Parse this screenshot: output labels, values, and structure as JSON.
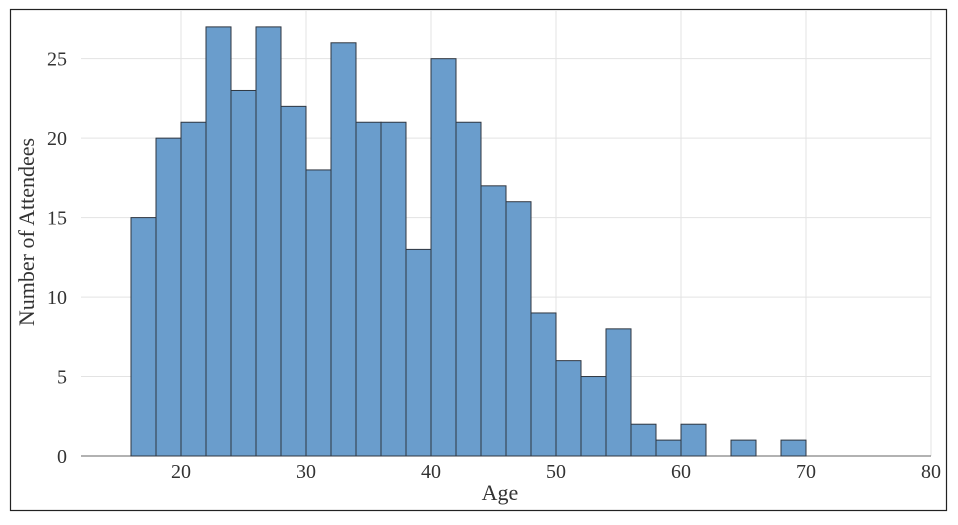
{
  "chart_data": {
    "type": "bar",
    "subtype": "histogram",
    "xlabel": "Age",
    "ylabel": "Number of Attendees",
    "xlim": [
      12,
      80
    ],
    "ylim": [
      0,
      28
    ],
    "xticks": [
      20,
      30,
      40,
      50,
      60,
      70,
      80
    ],
    "yticks": [
      0,
      5,
      10,
      15,
      20,
      25
    ],
    "grid": true,
    "bar_color": "#6a9dcc",
    "bar_edge_color": "#2f3640",
    "bins": [
      {
        "start": 16,
        "end": 18,
        "count": 15
      },
      {
        "start": 18,
        "end": 20,
        "count": 20
      },
      {
        "start": 20,
        "end": 22,
        "count": 21
      },
      {
        "start": 22,
        "end": 24,
        "count": 27
      },
      {
        "start": 24,
        "end": 26,
        "count": 23
      },
      {
        "start": 26,
        "end": 28,
        "count": 27
      },
      {
        "start": 28,
        "end": 30,
        "count": 22
      },
      {
        "start": 30,
        "end": 32,
        "count": 18
      },
      {
        "start": 32,
        "end": 34,
        "count": 26
      },
      {
        "start": 34,
        "end": 36,
        "count": 21
      },
      {
        "start": 36,
        "end": 38,
        "count": 21
      },
      {
        "start": 38,
        "end": 40,
        "count": 13
      },
      {
        "start": 40,
        "end": 42,
        "count": 25
      },
      {
        "start": 42,
        "end": 44,
        "count": 21
      },
      {
        "start": 44,
        "end": 46,
        "count": 17
      },
      {
        "start": 46,
        "end": 48,
        "count": 16
      },
      {
        "start": 48,
        "end": 50,
        "count": 9
      },
      {
        "start": 50,
        "end": 52,
        "count": 6
      },
      {
        "start": 52,
        "end": 54,
        "count": 5
      },
      {
        "start": 54,
        "end": 56,
        "count": 8
      },
      {
        "start": 56,
        "end": 58,
        "count": 2
      },
      {
        "start": 58,
        "end": 60,
        "count": 1
      },
      {
        "start": 60,
        "end": 62,
        "count": 2
      },
      {
        "start": 62,
        "end": 64,
        "count": 0
      },
      {
        "start": 64,
        "end": 66,
        "count": 1
      },
      {
        "start": 66,
        "end": 68,
        "count": 0
      },
      {
        "start": 68,
        "end": 70,
        "count": 1
      }
    ]
  }
}
